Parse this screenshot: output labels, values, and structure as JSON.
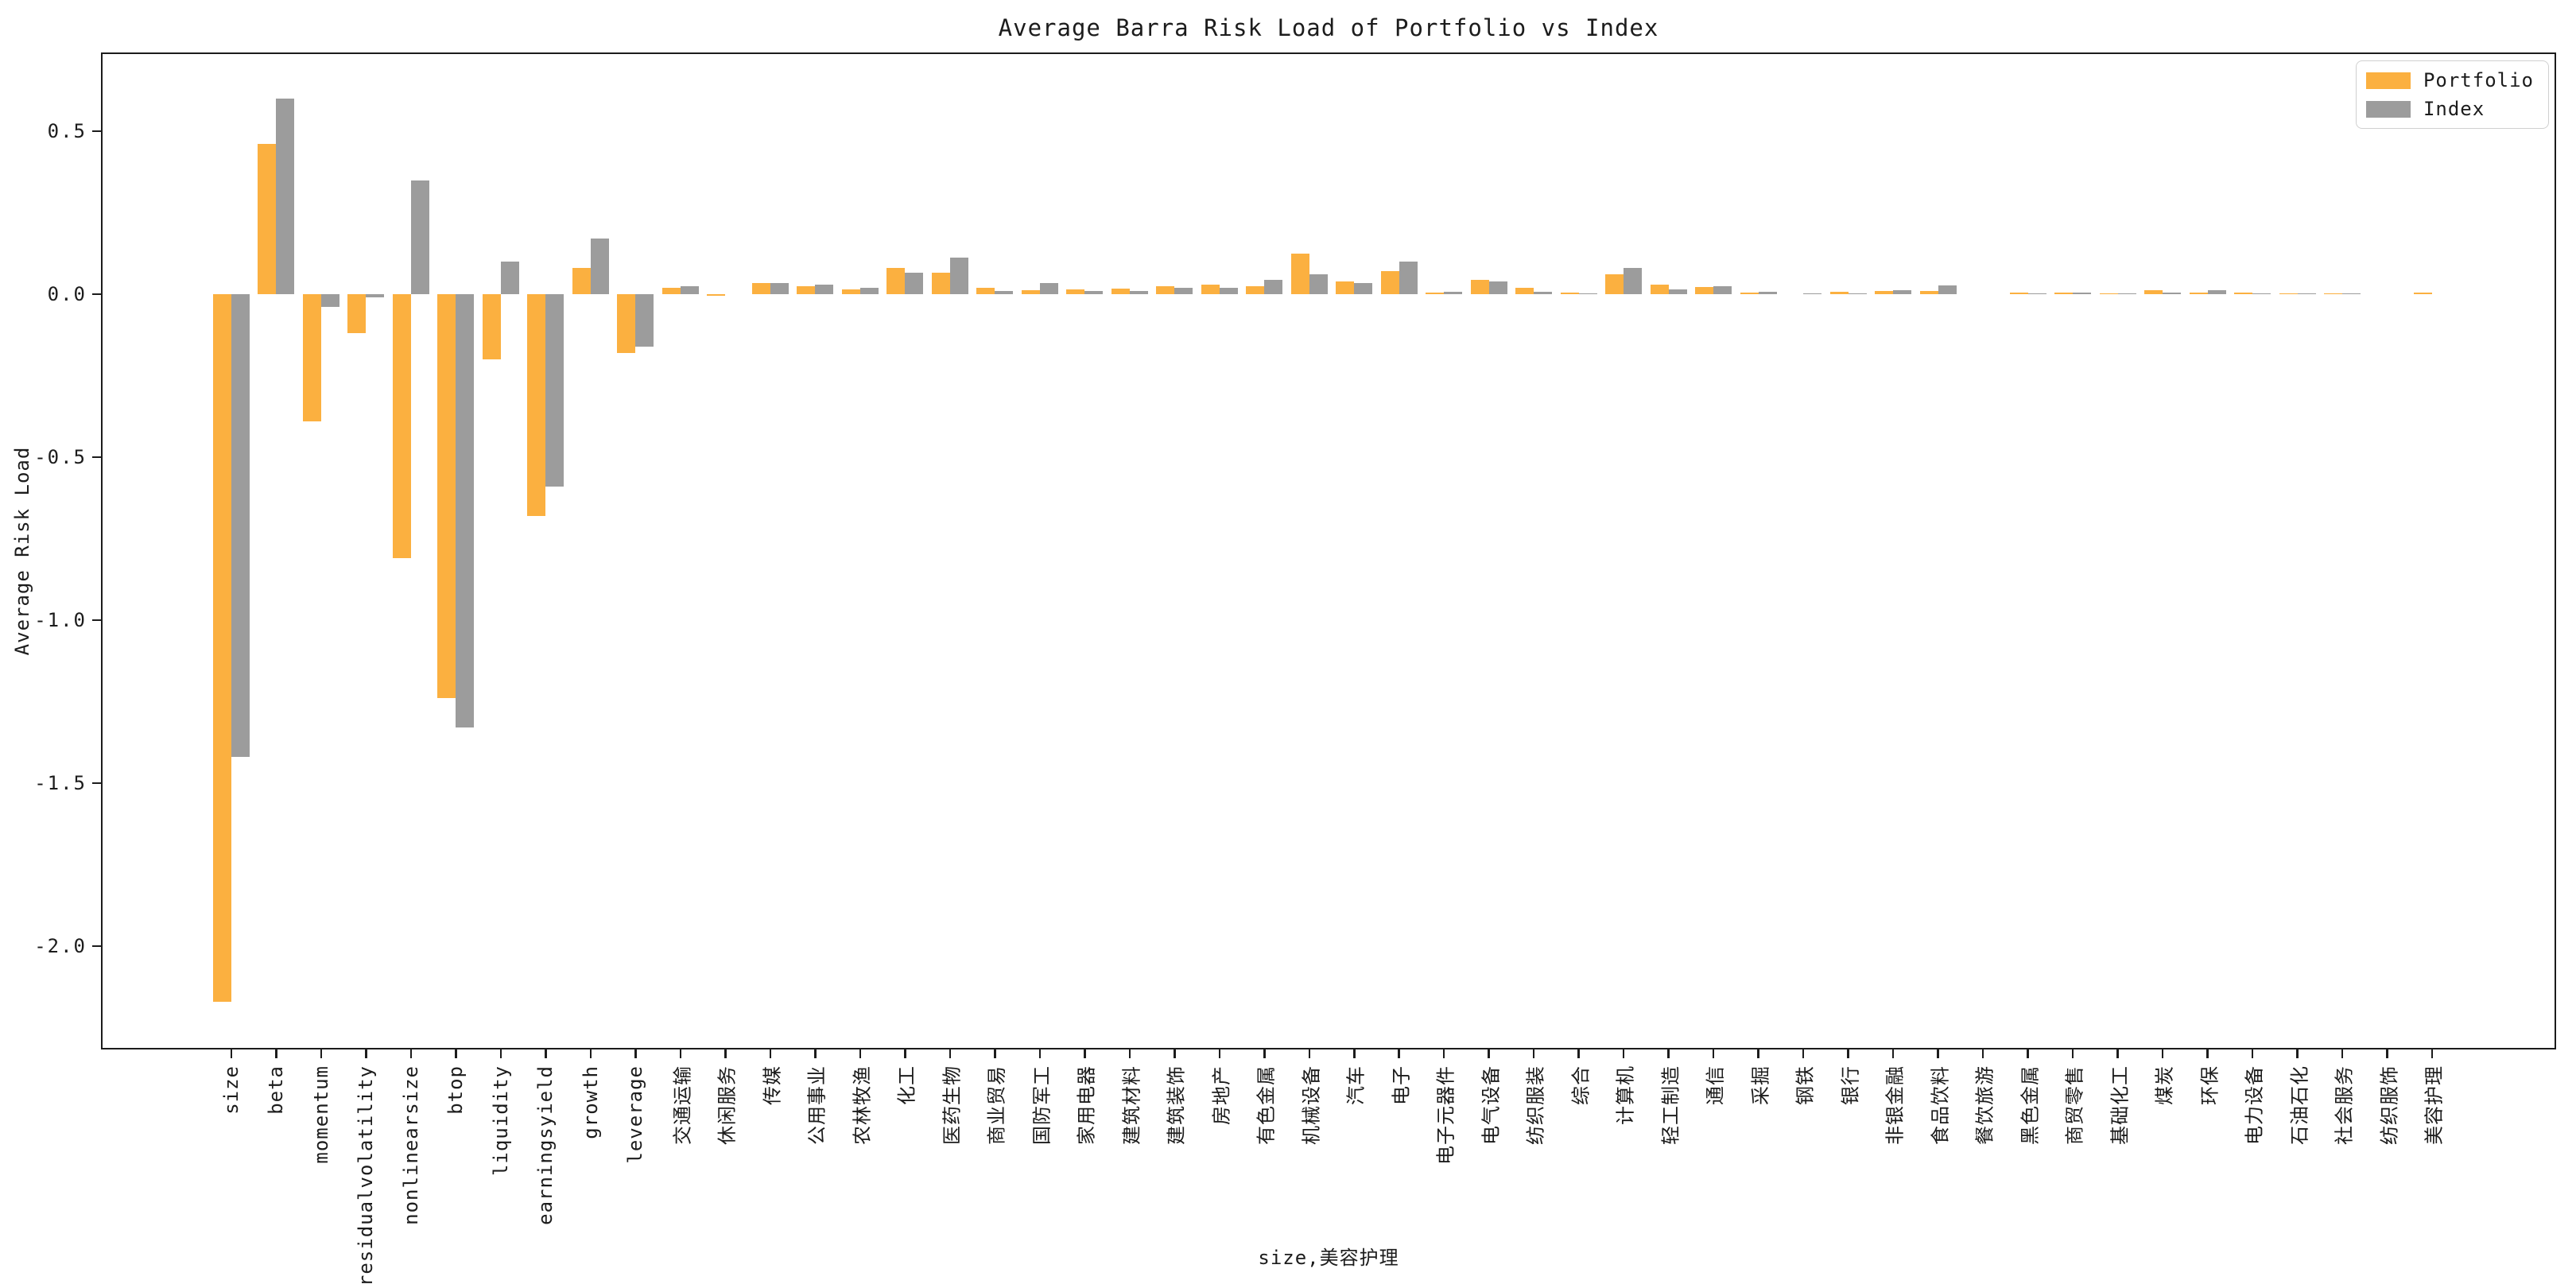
{
  "window": {
    "background": "#ffffff"
  },
  "chart_data": {
    "type": "bar",
    "title": "Average Barra Risk Load of Portfolio vs Index",
    "xlabel": "size,美容护理",
    "ylabel": "Average Risk Load",
    "ylim": [
      -2.32,
      0.74
    ],
    "grid": false,
    "legend_position": "upper right",
    "yticks": [
      {
        "value": 0.5,
        "label": "0.5"
      },
      {
        "value": 0.0,
        "label": "0.0"
      },
      {
        "value": -0.5,
        "label": "-0.5"
      },
      {
        "value": -1.0,
        "label": "-1.0"
      },
      {
        "value": -1.5,
        "label": "-1.5"
      },
      {
        "value": -2.0,
        "label": "-2.0"
      }
    ],
    "categories": [
      "size",
      "beta",
      "momentum",
      "residualvolatility",
      "nonlinearsize",
      "btop",
      "liquidity",
      "earningsyield",
      "growth",
      "leverage",
      "交通运输",
      "休闲服务",
      "传媒",
      "公用事业",
      "农林牧渔",
      "化工",
      "医药生物",
      "商业贸易",
      "国防军工",
      "家用电器",
      "建筑材料",
      "建筑装饰",
      "房地产",
      "有色金属",
      "机械设备",
      "汽车",
      "电子",
      "电子元器件",
      "电气设备",
      "纺织服装",
      "综合",
      "计算机",
      "轻工制造",
      "通信",
      "采掘",
      "钢铁",
      "银行",
      "非银金融",
      "食品饮料",
      "餐饮旅游",
      "黑色金属",
      "商贸零售",
      "基础化工",
      "煤炭",
      "环保",
      "电力设备",
      "石油石化",
      "社会服务",
      "纺织服饰",
      "美容护理"
    ],
    "series": [
      {
        "name": "Portfolio",
        "color": "#FBB040",
        "values": [
          -2.17,
          0.46,
          -0.39,
          -0.12,
          -0.81,
          -1.24,
          -0.2,
          -0.68,
          0.08,
          -0.18,
          0.02,
          -0.005,
          0.035,
          0.025,
          0.015,
          0.08,
          0.065,
          0.02,
          0.012,
          0.014,
          0.016,
          0.025,
          0.03,
          0.025,
          0.125,
          0.04,
          0.07,
          0.005,
          0.045,
          0.02,
          0.005,
          0.06,
          0.03,
          0.022,
          0.006,
          0.0,
          0.008,
          0.009,
          0.009,
          0.0,
          0.005,
          0.005,
          0.002,
          0.012,
          0.006,
          0.004,
          0.002,
          0.003,
          0.0,
          0.004
        ]
      },
      {
        "name": "Index",
        "color": "#9C9C9C",
        "values": [
          -1.42,
          0.6,
          -0.04,
          -0.01,
          0.35,
          -1.33,
          0.1,
          -0.59,
          0.17,
          -0.16,
          0.025,
          0.0,
          0.035,
          0.03,
          0.02,
          0.067,
          0.112,
          0.009,
          0.033,
          0.009,
          0.01,
          0.02,
          0.02,
          0.045,
          0.06,
          0.035,
          0.1,
          0.008,
          0.04,
          0.008,
          0.002,
          0.08,
          0.015,
          0.025,
          0.008,
          0.003,
          0.003,
          0.012,
          0.028,
          0.0,
          0.002,
          0.004,
          0.003,
          0.006,
          0.012,
          0.002,
          0.002,
          0.002,
          0.0,
          0.0
        ]
      }
    ]
  }
}
